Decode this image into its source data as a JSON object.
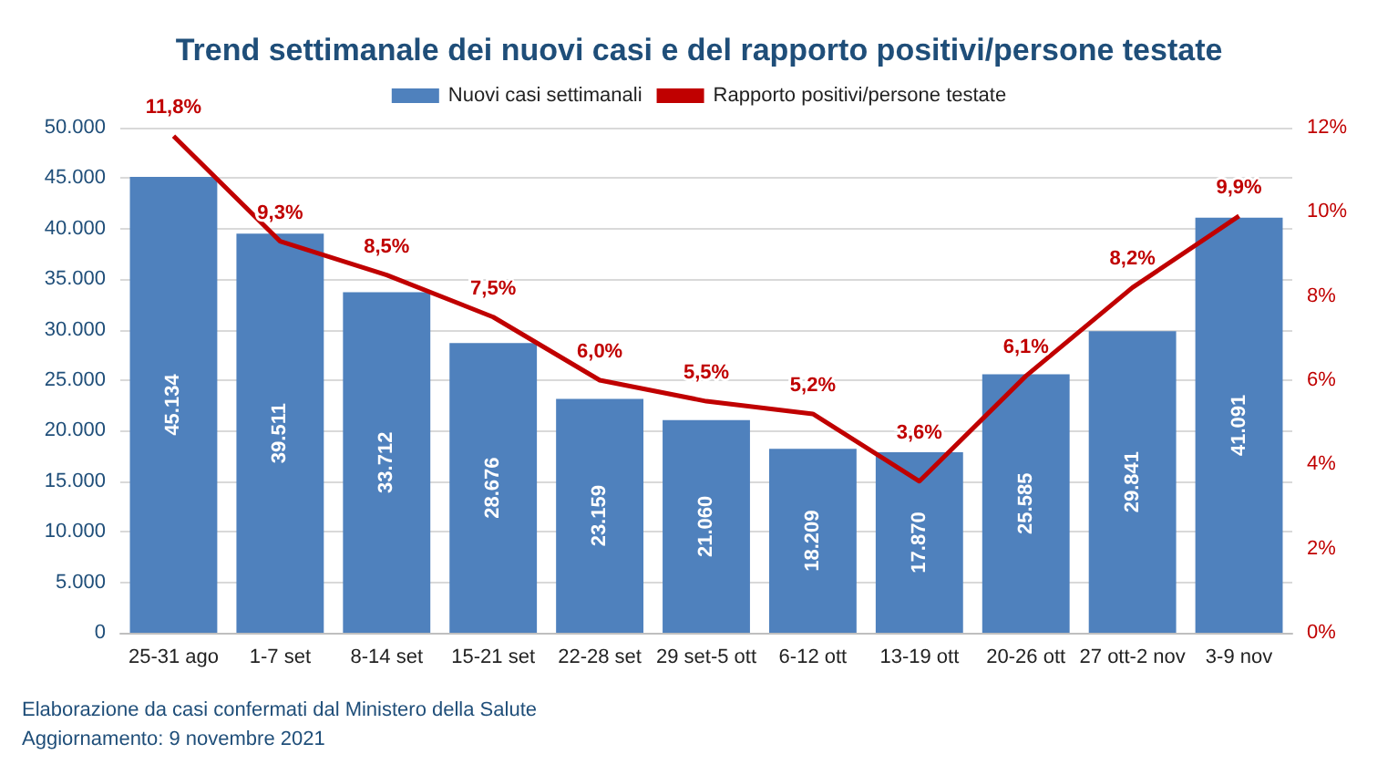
{
  "chart_data": {
    "type": "bar",
    "title": "Trend settimanale dei nuovi casi e del rapporto positivi/persone testate",
    "categories": [
      "25-31 ago",
      "1-7 set",
      "8-14 set",
      "15-21 set",
      "22-28 set",
      "29 set-5 ott",
      "6-12 ott",
      "13-19 ott",
      "20-26 ott",
      "27 ott-2 nov",
      "3-9 nov"
    ],
    "series": [
      {
        "name": "Nuovi casi settimanali",
        "color": "#4f81bd",
        "values": [
          45134,
          39511,
          33712,
          28676,
          23159,
          21060,
          18209,
          17870,
          25585,
          29841,
          41091
        ],
        "value_labels": [
          "45.134",
          "39.511",
          "33.712",
          "28.676",
          "23.159",
          "21.060",
          "18.209",
          "17.870",
          "25.585",
          "29.841",
          "41.091"
        ]
      },
      {
        "name": "Rapporto positivi/persone testate",
        "type": "line",
        "axis": "y2",
        "color": "#c00000",
        "values": [
          11.8,
          9.3,
          8.5,
          7.5,
          6.0,
          5.5,
          5.2,
          3.6,
          6.1,
          8.2,
          9.9
        ],
        "value_labels": [
          "11,8%",
          "9,3%",
          "8,5%",
          "7,5%",
          "6,0%",
          "5,5%",
          "5,2%",
          "3,6%",
          "6,1%",
          "8,2%",
          "9,9%"
        ]
      }
    ],
    "ylim": [
      0,
      50000
    ],
    "yticks": [
      {
        "value": 0,
        "label": "0"
      },
      {
        "value": 5000,
        "label": "5.000"
      },
      {
        "value": 10000,
        "label": "10.000"
      },
      {
        "value": 15000,
        "label": "15.000"
      },
      {
        "value": 20000,
        "label": "20.000"
      },
      {
        "value": 25000,
        "label": "25.000"
      },
      {
        "value": 30000,
        "label": "30.000"
      },
      {
        "value": 35000,
        "label": "35.000"
      },
      {
        "value": 40000,
        "label": "40.000"
      },
      {
        "value": 45000,
        "label": "45.000"
      },
      {
        "value": 50000,
        "label": "50.000"
      }
    ],
    "y2lim": [
      0,
      12
    ],
    "y2ticks": [
      {
        "value": 0,
        "label": "0%"
      },
      {
        "value": 2,
        "label": "2%"
      },
      {
        "value": 4,
        "label": "4%"
      },
      {
        "value": 6,
        "label": "6%"
      },
      {
        "value": 8,
        "label": "8%"
      },
      {
        "value": 10,
        "label": "10%"
      },
      {
        "value": 12,
        "label": "12%"
      }
    ],
    "grid": "y",
    "legend": "top",
    "marker": "none",
    "line_style": "solid",
    "annotations": [
      "Elaborazione da casi confermati dal Ministero della Salute",
      "Aggiornamento: 9 novembre 2021"
    ]
  }
}
